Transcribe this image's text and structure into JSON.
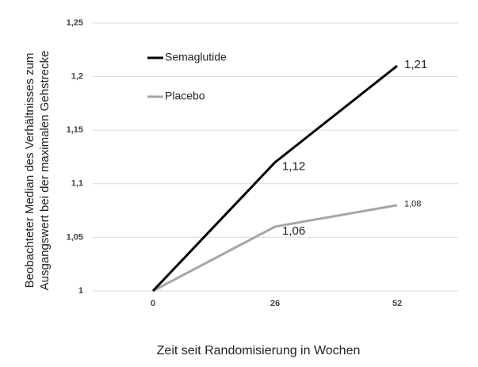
{
  "chart_data": {
    "type": "line",
    "ylabel": [
      "Beobachteter Median des Verhältnisses zum",
      "Ausgangswert bei der maximalen Gehstrecke"
    ],
    "xlabel": "Zeit seit Randomisierung in Wochen",
    "categories": [
      "0",
      "26",
      "52"
    ],
    "series": [
      {
        "name": "Semaglutide",
        "color": "#000000",
        "values": [
          1,
          1.12,
          1.21
        ],
        "value_labels": [
          null,
          "1,12",
          "1,21"
        ]
      },
      {
        "name": "Placebo",
        "color": "#a6a6a6",
        "values": [
          1,
          1.06,
          1.08
        ],
        "value_labels": [
          null,
          "1,06",
          "1,08"
        ]
      }
    ],
    "ylim": [
      1,
      1.25
    ],
    "yticks": [
      1,
      {
        "value": 1.05,
        "label": "1,05"
      },
      {
        "value": 1.1,
        "label": "1,1"
      },
      {
        "value": 1.15,
        "label": "1,15"
      },
      {
        "value": 1.2,
        "label": "1,2"
      },
      {
        "value": 1.25,
        "label": "1,25"
      }
    ],
    "grid": true,
    "legend": "upper left"
  }
}
